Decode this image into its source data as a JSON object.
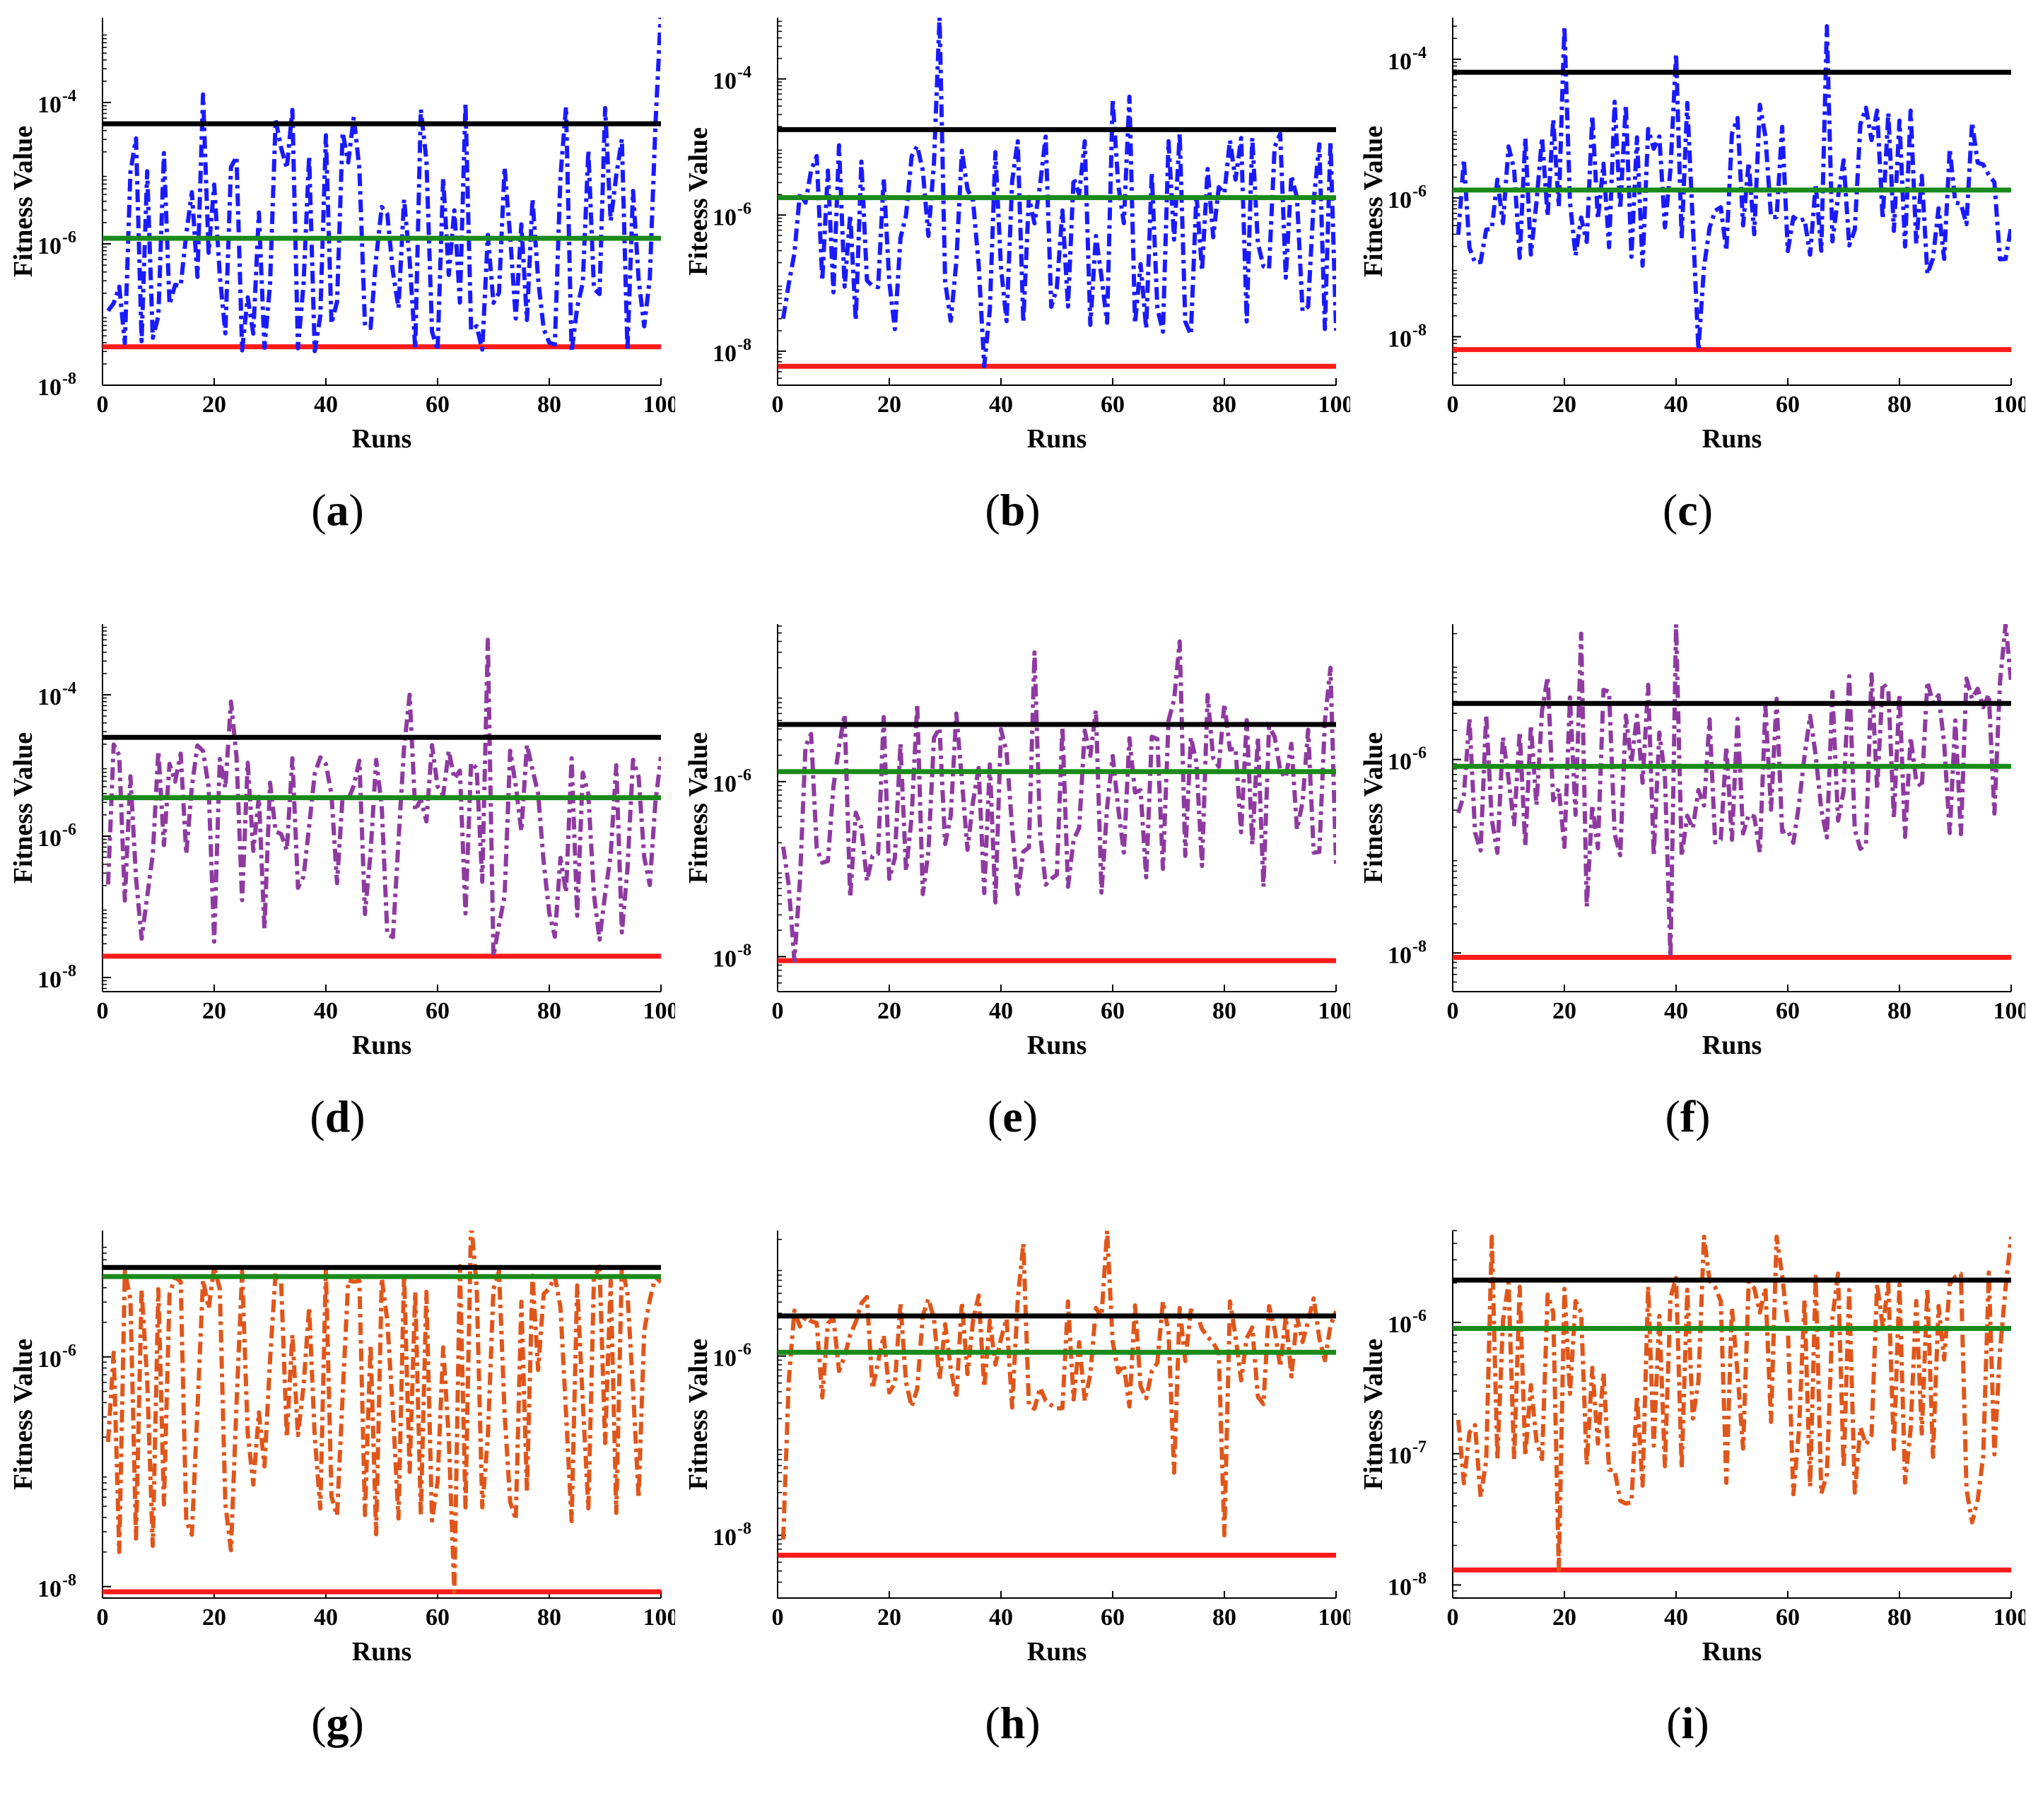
{
  "colors": {
    "black_line": "#000000",
    "green_line": "#1a8a1a",
    "red_line": "#ff1a1a",
    "blue_series": "#1a1aff",
    "purple_series": "#8e3aa0",
    "orange_series": "#e0561a"
  },
  "chart_data": [
    {
      "id": "a",
      "caption": "a",
      "type": "line",
      "scale": "log",
      "xlabel": "Runs",
      "ylabel": "Fitness Value",
      "xlim": [
        0,
        100
      ],
      "xticks": [
        0,
        20,
        40,
        60,
        80,
        100
      ],
      "ylim_exp": [
        -8.0,
        -2.8
      ],
      "yticks": [
        {
          "exp": -8,
          "label": "10",
          "sup": "-8"
        },
        {
          "exp": -6,
          "label": "10",
          "sup": "-6"
        },
        {
          "exp": -4,
          "label": "10",
          "sup": "-4"
        }
      ],
      "hlines": {
        "black": 5e-05,
        "green": 1.2e-06,
        "red": 3.5e-08
      },
      "series_color": "blue_series",
      "seed": 11,
      "low_exp": -7.6,
      "high_exp": -4.0,
      "center_exp": -6.0,
      "spikes": [
        [
          18,
          0.00013
        ],
        [
          57,
          8e-05
        ],
        [
          80,
          4e-08
        ],
        [
          100,
          0.002
        ],
        [
          47,
          7e-08
        ]
      ]
    },
    {
      "id": "b",
      "caption": "b",
      "type": "line",
      "scale": "log",
      "xlabel": "Runs",
      "ylabel": "Fiteess Value",
      "xlim": [
        0,
        100
      ],
      "xticks": [
        0,
        20,
        40,
        60,
        80,
        100
      ],
      "ylim_exp": [
        -8.5,
        -3.1
      ],
      "yticks": [
        {
          "exp": -8,
          "label": "10",
          "sup": "-8"
        },
        {
          "exp": -6,
          "label": "10",
          "sup": "-6"
        },
        {
          "exp": -4,
          "label": "10",
          "sup": "-4"
        }
      ],
      "hlines": {
        "black": 1.8e-05,
        "green": 1.8e-06,
        "red": 6e-09
      },
      "series_color": "blue_series",
      "seed": 23,
      "low_exp": -7.8,
      "high_exp": -4.8,
      "center_exp": -5.9,
      "spikes": [
        [
          29,
          0.0008
        ],
        [
          37,
          6e-09
        ],
        [
          60,
          5e-05
        ],
        [
          63,
          5.5e-05
        ],
        [
          1,
          3e-08
        ],
        [
          100,
          2e-08
        ]
      ]
    },
    {
      "id": "c",
      "caption": "c",
      "type": "line",
      "scale": "log",
      "xlabel": "Runs",
      "ylabel": "Fitness Value",
      "xlim": [
        0,
        100
      ],
      "xticks": [
        0,
        20,
        40,
        60,
        80,
        100
      ],
      "ylim_exp": [
        -8.7,
        -3.4
      ],
      "yticks": [
        {
          "exp": -8,
          "label": "10",
          "sup": "-8"
        },
        {
          "exp": -6,
          "label": "10",
          "sup": "-6"
        },
        {
          "exp": -4,
          "label": "10",
          "sup": "-4"
        }
      ],
      "hlines": {
        "black": 6.5e-05,
        "green": 1.3e-06,
        "red": 6.5e-09
      },
      "series_color": "blue_series",
      "seed": 37,
      "low_exp": -7.0,
      "high_exp": -4.6,
      "center_exp": -5.9,
      "spikes": [
        [
          20,
          0.0003
        ],
        [
          44,
          6.5e-09
        ],
        [
          67,
          0.0003
        ],
        [
          40,
          0.00012
        ],
        [
          85,
          8e-08
        ]
      ]
    },
    {
      "id": "d",
      "caption": "d",
      "type": "line",
      "scale": "log",
      "xlabel": "Runs",
      "ylabel": "Fitness Value",
      "xlim": [
        0,
        100
      ],
      "xticks": [
        0,
        20,
        40,
        60,
        80,
        100
      ],
      "ylim_exp": [
        -8.2,
        -3.0
      ],
      "yticks": [
        {
          "exp": -8,
          "label": "10",
          "sup": "-8"
        },
        {
          "exp": -6,
          "label": "10",
          "sup": "-6"
        },
        {
          "exp": -4,
          "label": "10",
          "sup": "-4"
        }
      ],
      "hlines": {
        "black": 2.5e-05,
        "green": 3.5e-06,
        "red": 2e-08
      },
      "series_color": "purple_series",
      "seed": 41,
      "low_exp": -7.5,
      "high_exp": -4.7,
      "center_exp": -5.6,
      "spikes": [
        [
          69,
          0.0006
        ],
        [
          70,
          2e-08
        ],
        [
          55,
          0.0001
        ],
        [
          23,
          8e-05
        ]
      ]
    },
    {
      "id": "e",
      "caption": "e",
      "type": "line",
      "scale": "log",
      "xlabel": "Runs",
      "ylabel": "Fitness Value",
      "xlim": [
        0,
        100
      ],
      "xticks": [
        0,
        20,
        40,
        60,
        80,
        100
      ],
      "ylim_exp": [
        -8.4,
        -4.2
      ],
      "yticks": [
        {
          "exp": -8,
          "label": "10",
          "sup": "-8"
        },
        {
          "exp": -6,
          "label": "10",
          "sup": "-6"
        }
      ],
      "hlines": {
        "black": 4.5e-06,
        "green": 1.3e-06,
        "red": 9e-09
      },
      "series_color": "purple_series",
      "seed": 53,
      "low_exp": -7.4,
      "high_exp": -5.0,
      "center_exp": -5.9,
      "spikes": [
        [
          3,
          9e-09
        ],
        [
          46,
          3e-05
        ],
        [
          72,
          4e-05
        ],
        [
          99,
          2e-05
        ],
        [
          18,
          1.5e-07
        ]
      ]
    },
    {
      "id": "f",
      "caption": "f",
      "type": "line",
      "scale": "log",
      "xlabel": "Runs",
      "ylabel": "Fitness Value",
      "xlim": [
        0,
        100
      ],
      "xticks": [
        0,
        20,
        40,
        60,
        80,
        100
      ],
      "ylim_exp": [
        -8.4,
        -4.6
      ],
      "yticks": [
        {
          "exp": -8,
          "label": "10",
          "sup": "-8"
        },
        {
          "exp": -6,
          "label": "10",
          "sup": "-6"
        }
      ],
      "hlines": {
        "black": 3.8e-06,
        "green": 8.5e-07,
        "red": 9e-09
      },
      "series_color": "purple_series",
      "seed": 67,
      "low_exp": -7.0,
      "high_exp": -5.1,
      "center_exp": -6.0,
      "spikes": [
        [
          39,
          9e-09
        ],
        [
          40,
          2.5e-05
        ],
        [
          23,
          2e-05
        ],
        [
          99,
          2.5e-05
        ],
        [
          24,
          3e-08
        ]
      ]
    },
    {
      "id": "g",
      "caption": "g",
      "type": "line",
      "scale": "log",
      "xlabel": "Runs",
      "ylabel": "Fitness Value",
      "xlim": [
        0,
        100
      ],
      "xticks": [
        0,
        20,
        40,
        60,
        80,
        100
      ],
      "ylim_exp": [
        -8.1,
        -4.9
      ],
      "yticks": [
        {
          "exp": -8,
          "label": "10",
          "sup": "-8"
        },
        {
          "exp": -6,
          "label": "10",
          "sup": "-6"
        }
      ],
      "hlines": {
        "black": 6e-06,
        "green": 5e-06,
        "red": 9e-09
      },
      "series_color": "orange_series",
      "seed": 79,
      "low_exp": -7.7,
      "high_exp": -5.2,
      "center_exp": -5.6,
      "spikes": [
        [
          63,
          9e-09
        ],
        [
          66,
          1.5e-05
        ],
        [
          3,
          2e-08
        ]
      ]
    },
    {
      "id": "h",
      "caption": "h",
      "type": "line",
      "scale": "log",
      "xlabel": "Runs",
      "ylabel": "Fitness Value",
      "xlim": [
        0,
        100
      ],
      "xticks": [
        0,
        20,
        40,
        60,
        80,
        100
      ],
      "ylim_exp": [
        -8.7,
        -4.6
      ],
      "yticks": [
        {
          "exp": -8,
          "label": "10",
          "sup": "-8"
        },
        {
          "exp": -6,
          "label": "10",
          "sup": "-6"
        }
      ],
      "hlines": {
        "black": 2.8e-06,
        "green": 1.1e-06,
        "red": 6e-09
      },
      "series_color": "orange_series",
      "seed": 83,
      "low_exp": -6.6,
      "high_exp": -5.3,
      "center_exp": -5.9,
      "spikes": [
        [
          1,
          9e-09
        ],
        [
          59,
          2.5e-05
        ],
        [
          80,
          1e-08
        ],
        [
          44,
          1.8e-05
        ],
        [
          71,
          5e-08
        ]
      ]
    },
    {
      "id": "i",
      "caption": "i",
      "type": "line",
      "scale": "log",
      "xlabel": "Runs",
      "ylabel": "Fitness Value",
      "xlim": [
        0,
        100
      ],
      "xticks": [
        0,
        20,
        40,
        60,
        80,
        100
      ],
      "ylim_exp": [
        -8.1,
        -5.3
      ],
      "yticks": [
        {
          "exp": -8,
          "label": "10",
          "sup": "-8"
        },
        {
          "exp": -7,
          "label": "10",
          "sup": "-7"
        },
        {
          "exp": -6,
          "label": "10",
          "sup": "-6"
        }
      ],
      "hlines": {
        "black": 2.1e-06,
        "green": 9e-07,
        "red": 1.3e-08
      },
      "series_color": "orange_series",
      "seed": 97,
      "low_exp": -7.4,
      "high_exp": -5.6,
      "center_exp": -6.0,
      "spikes": [
        [
          19,
          1.3e-08
        ],
        [
          7,
          4.5e-06
        ],
        [
          45,
          4.5e-06
        ],
        [
          58,
          4.5e-06
        ],
        [
          100,
          4.5e-06
        ],
        [
          93,
          3e-08
        ]
      ]
    }
  ]
}
